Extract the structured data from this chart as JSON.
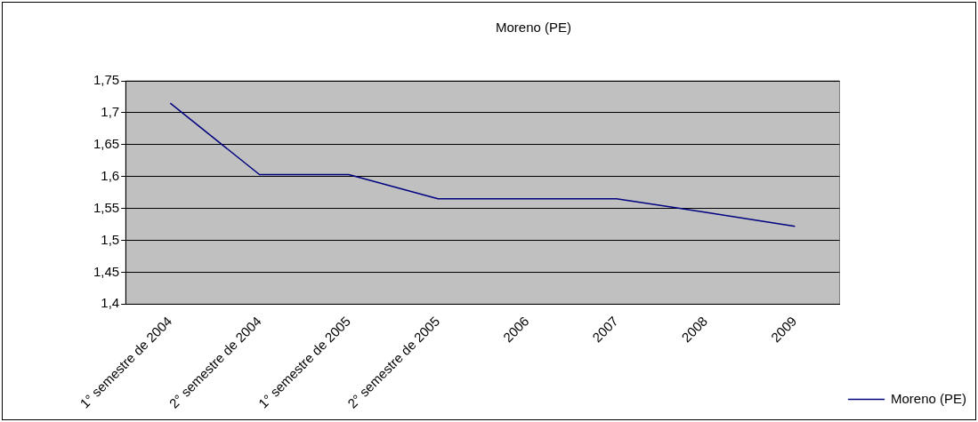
{
  "chart_data": {
    "type": "line",
    "title": "Moreno (PE)",
    "categories": [
      "1° semestre de 2004",
      "2° semestre de 2004",
      "1° semestre de 2005",
      "2° semestre de 2005",
      "2006",
      "2007",
      "2008",
      "2009"
    ],
    "series": [
      {
        "name": "Moreno (PE)",
        "color": "#000080",
        "values": [
          1.715,
          1.603,
          1.603,
          1.565,
          1.565,
          1.565,
          1.544,
          1.522
        ]
      }
    ],
    "ylim": [
      1.4,
      1.75
    ],
    "yticks": [
      {
        "value": 1.4,
        "label": "1,4"
      },
      {
        "value": 1.45,
        "label": "1,45"
      },
      {
        "value": 1.5,
        "label": "1,5"
      },
      {
        "value": 1.55,
        "label": "1,55"
      },
      {
        "value": 1.6,
        "label": "1,6"
      },
      {
        "value": 1.65,
        "label": "1,65"
      },
      {
        "value": 1.7,
        "label": "1,7"
      },
      {
        "value": 1.75,
        "label": "1,75"
      }
    ],
    "grid": "y",
    "legend": "right",
    "marker": "none",
    "line_style": "solid"
  }
}
